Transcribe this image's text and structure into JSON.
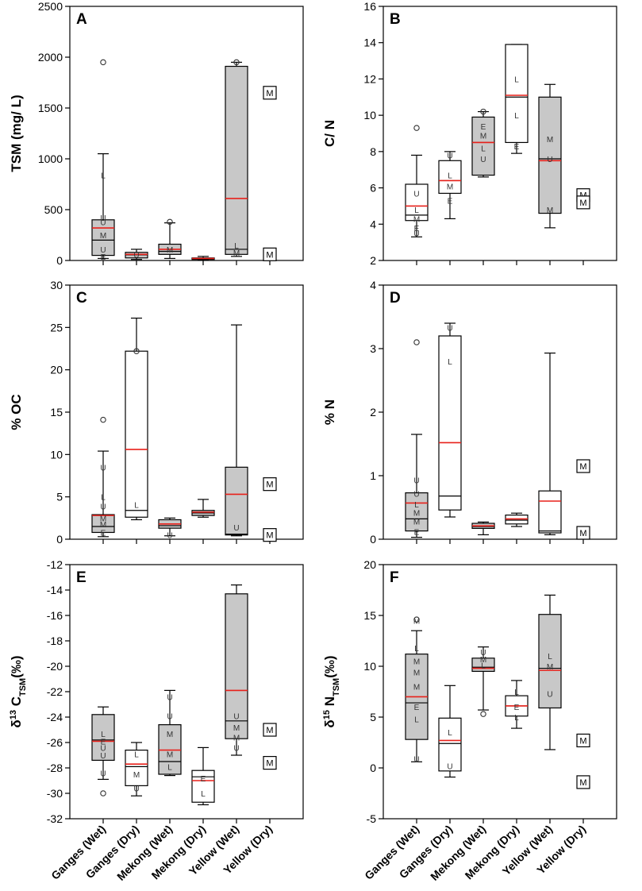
{
  "figure": {
    "categories": [
      "Ganges (Wet)",
      "Ganges (Dry)",
      "Mekong (Wet)",
      "Mekong (Dry)",
      "Yellow (Wet)",
      "Yellow (Dry)"
    ]
  },
  "chart_data": [
    {
      "type": "box",
      "panel": "A",
      "ylabel": "TSM (mg/ L)",
      "ylim": [
        0,
        2500
      ],
      "yticks": [
        0,
        500,
        1000,
        1500,
        2000,
        2500
      ],
      "boxes": [
        {
          "cat": 0,
          "fill": "gray",
          "whiskerLow": 20,
          "q1": 50,
          "median": 200,
          "mean": 320,
          "q3": 400,
          "whiskerHigh": 1050,
          "outliers": [
            1950
          ],
          "markers": [
            {
              "t": "L",
              "v": 840
            },
            {
              "t": "U",
              "v": 420
            },
            {
              "t": "U",
              "v": 380
            },
            {
              "t": "M",
              "v": 250
            },
            {
              "t": "U",
              "v": 110
            },
            {
              "t": "E",
              "v": 40
            }
          ]
        },
        {
          "cat": 1,
          "fill": "gray",
          "whiskerLow": 10,
          "q1": 25,
          "median": 55,
          "mean": 60,
          "q3": 80,
          "whiskerHigh": 110,
          "outliers": [],
          "markers": [
            {
              "t": "U",
              "v": 60
            }
          ]
        },
        {
          "cat": 2,
          "fill": "gray",
          "whiskerLow": 20,
          "q1": 60,
          "median": 90,
          "mean": 110,
          "q3": 160,
          "whiskerHigh": 370,
          "outliers": [
            380
          ],
          "markers": [
            {
              "t": "M",
              "v": 110
            }
          ]
        },
        {
          "cat": 3,
          "fill": "gray",
          "whiskerLow": 5,
          "q1": 10,
          "median": 15,
          "mean": 20,
          "q3": 25,
          "whiskerHigh": 40,
          "outliers": [],
          "markers": []
        },
        {
          "cat": 4,
          "fill": "gray",
          "whiskerLow": 40,
          "q1": 60,
          "median": 110,
          "mean": 610,
          "q3": 1910,
          "whiskerHigh": 1950,
          "outliers": [
            1950
          ],
          "markers": [
            {
              "t": "L",
              "v": 150
            },
            {
              "t": "M",
              "v": 80
            }
          ]
        }
      ],
      "singles": [
        {
          "cat": 5,
          "t": "M",
          "v": 1650
        },
        {
          "cat": 5,
          "t": "M",
          "v": 60
        }
      ]
    },
    {
      "type": "box",
      "panel": "B",
      "ylabel": "C/ N",
      "ylim": [
        2,
        16
      ],
      "yticks": [
        2,
        4,
        6,
        8,
        10,
        12,
        14,
        16
      ],
      "boxes": [
        {
          "cat": 0,
          "fill": "white",
          "whiskerLow": 3.3,
          "q1": 4.2,
          "median": 4.5,
          "mean": 5.0,
          "q3": 6.2,
          "whiskerHigh": 7.8,
          "outliers": [
            9.3
          ],
          "markers": [
            {
              "t": "U",
              "v": 5.7
            },
            {
              "t": "L",
              "v": 4.8
            },
            {
              "t": "M",
              "v": 4.3
            },
            {
              "t": "E",
              "v": 3.8
            },
            {
              "t": "U",
              "v": 3.5
            }
          ]
        },
        {
          "cat": 1,
          "fill": "white",
          "whiskerLow": 4.3,
          "q1": 5.7,
          "median": 6.4,
          "mean": 6.4,
          "q3": 7.5,
          "whiskerHigh": 8.0,
          "outliers": [],
          "markers": [
            {
              "t": "U",
              "v": 7.8
            },
            {
              "t": "L",
              "v": 6.7
            },
            {
              "t": "M",
              "v": 6.1
            },
            {
              "t": "E",
              "v": 5.3
            }
          ]
        },
        {
          "cat": 2,
          "fill": "gray",
          "whiskerLow": 6.6,
          "q1": 6.7,
          "median": 8.5,
          "mean": 8.5,
          "q3": 9.9,
          "whiskerHigh": 10.2,
          "outliers": [
            10.2
          ],
          "markers": [
            {
              "t": "E",
              "v": 9.4
            },
            {
              "t": "M",
              "v": 8.9
            },
            {
              "t": "L",
              "v": 8.2
            },
            {
              "t": "U",
              "v": 7.6
            }
          ]
        },
        {
          "cat": 3,
          "fill": "white",
          "whiskerLow": 7.9,
          "q1": 8.5,
          "median": 11.0,
          "mean": 11.1,
          "q3": 13.9,
          "whiskerHigh": 13.9,
          "outliers": [],
          "markers": [
            {
              "t": "L",
              "v": 12.0
            },
            {
              "t": "L",
              "v": 10.0
            },
            {
              "t": "E",
              "v": 8.3
            }
          ]
        },
        {
          "cat": 4,
          "fill": "gray",
          "whiskerLow": 3.8,
          "q1": 4.6,
          "median": 7.6,
          "mean": 7.5,
          "q3": 11.0,
          "whiskerHigh": 11.7,
          "outliers": [],
          "markers": [
            {
              "t": "M",
              "v": 8.7
            },
            {
              "t": "U",
              "v": 7.6
            },
            {
              "t": "M",
              "v": 4.8
            }
          ]
        }
      ],
      "singles": [
        {
          "cat": 5,
          "t": "M",
          "v": 5.6
        },
        {
          "cat": 5,
          "t": "M",
          "v": 5.2
        }
      ]
    },
    {
      "type": "box",
      "panel": "C",
      "ylabel": "% OC",
      "ylim": [
        0,
        30
      ],
      "yticks": [
        0,
        5,
        10,
        15,
        20,
        25,
        30
      ],
      "boxes": [
        {
          "cat": 0,
          "fill": "gray",
          "whiskerLow": 0.3,
          "q1": 0.8,
          "median": 1.5,
          "mean": 2.8,
          "q3": 2.9,
          "whiskerHigh": 10.4,
          "outliers": [
            14.1
          ],
          "markers": [
            {
              "t": "U",
              "v": 8.5
            },
            {
              "t": "L",
              "v": 5.0
            },
            {
              "t": "U",
              "v": 3.9
            },
            {
              "t": "M",
              "v": 2.5
            },
            {
              "t": "M",
              "v": 1.8
            },
            {
              "t": "E",
              "v": 0.8
            }
          ]
        },
        {
          "cat": 1,
          "fill": "white",
          "whiskerLow": 2.3,
          "q1": 2.6,
          "median": 3.4,
          "mean": 10.6,
          "q3": 22.2,
          "whiskerHigh": 26.1,
          "outliers": [
            22.2
          ],
          "markers": [
            {
              "t": "L",
              "v": 4.1
            }
          ]
        },
        {
          "cat": 2,
          "fill": "gray",
          "whiskerLow": 0.4,
          "q1": 1.3,
          "median": 1.6,
          "mean": 1.8,
          "q3": 2.3,
          "whiskerHigh": 2.5,
          "outliers": [],
          "markers": [
            {
              "t": "U",
              "v": 0.5
            }
          ]
        },
        {
          "cat": 3,
          "fill": "gray",
          "whiskerLow": 2.6,
          "q1": 2.8,
          "median": 3.1,
          "mean": 3.2,
          "q3": 3.4,
          "whiskerHigh": 4.7,
          "outliers": [],
          "markers": []
        },
        {
          "cat": 4,
          "fill": "gray",
          "whiskerLow": 0.4,
          "q1": 0.5,
          "median": 0.6,
          "mean": 5.3,
          "q3": 8.5,
          "whiskerHigh": 25.3,
          "outliers": [],
          "markers": [
            {
              "t": "U",
              "v": 1.4
            }
          ]
        }
      ],
      "singles": [
        {
          "cat": 5,
          "t": "M",
          "v": 6.5
        },
        {
          "cat": 5,
          "t": "M",
          "v": 0.5
        }
      ]
    },
    {
      "type": "box",
      "panel": "D",
      "ylabel": "% N",
      "ylim": [
        0,
        4
      ],
      "yticks": [
        0,
        1,
        2,
        3,
        4
      ],
      "boxes": [
        {
          "cat": 0,
          "fill": "gray",
          "whiskerLow": 0.03,
          "q1": 0.13,
          "median": 0.32,
          "mean": 0.57,
          "q3": 0.73,
          "whiskerHigh": 1.65,
          "outliers": [
            3.1
          ],
          "markers": [
            {
              "t": "U",
              "v": 0.93
            },
            {
              "t": "U",
              "v": 0.72
            },
            {
              "t": "L",
              "v": 0.55
            },
            {
              "t": "M",
              "v": 0.42
            },
            {
              "t": "M",
              "v": 0.28
            },
            {
              "t": "E",
              "v": 0.12
            }
          ]
        },
        {
          "cat": 1,
          "fill": "white",
          "whiskerLow": 0.35,
          "q1": 0.46,
          "median": 0.68,
          "mean": 1.52,
          "q3": 3.2,
          "whiskerHigh": 3.4,
          "outliers": [],
          "markers": [
            {
              "t": "U",
              "v": 3.33
            },
            {
              "t": "L",
              "v": 2.8
            }
          ]
        },
        {
          "cat": 2,
          "fill": "gray",
          "whiskerLow": 0.07,
          "q1": 0.17,
          "median": 0.2,
          "mean": 0.21,
          "q3": 0.25,
          "whiskerHigh": 0.27,
          "outliers": [],
          "markers": []
        },
        {
          "cat": 3,
          "fill": "white",
          "whiskerLow": 0.2,
          "q1": 0.24,
          "median": 0.3,
          "mean": 0.32,
          "q3": 0.38,
          "whiskerHigh": 0.41,
          "outliers": [],
          "markers": []
        },
        {
          "cat": 4,
          "fill": "white",
          "whiskerLow": 0.07,
          "q1": 0.1,
          "median": 0.13,
          "mean": 0.6,
          "q3": 0.76,
          "whiskerHigh": 2.93,
          "outliers": [],
          "markers": []
        }
      ],
      "singles": [
        {
          "cat": 5,
          "t": "M",
          "v": 1.15
        },
        {
          "cat": 5,
          "t": "M",
          "v": 0.1
        }
      ]
    },
    {
      "type": "box",
      "panel": "E",
      "ylabel_parts": [
        "δ",
        "13",
        " C",
        "TSM",
        "(‰)"
      ],
      "ylim": [
        -32,
        -12
      ],
      "yticks": [
        -32,
        -30,
        -28,
        -26,
        -24,
        -22,
        -20,
        -18,
        -16,
        -14,
        -12
      ],
      "boxes": [
        {
          "cat": 0,
          "fill": "gray",
          "whiskerLow": -28.9,
          "q1": -27.4,
          "median": -25.8,
          "mean": -25.9,
          "q3": -23.8,
          "whiskerHigh": -23.2,
          "outliers": [
            -30.0
          ],
          "markers": [
            {
              "t": "L",
              "v": -25.3
            },
            {
              "t": "E",
              "v": -25.9
            },
            {
              "t": "U",
              "v": -26.4
            },
            {
              "t": "U",
              "v": -27.0
            },
            {
              "t": "U",
              "v": -28.4
            }
          ]
        },
        {
          "cat": 1,
          "fill": "white",
          "whiskerLow": -30.2,
          "q1": -29.4,
          "median": -27.9,
          "mean": -27.7,
          "q3": -26.6,
          "whiskerHigh": -26.0,
          "outliers": [],
          "markers": [
            {
              "t": "L",
              "v": -26.9
            },
            {
              "t": "M",
              "v": -28.5
            },
            {
              "t": "U",
              "v": -29.6
            }
          ]
        },
        {
          "cat": 2,
          "fill": "gray",
          "whiskerLow": -28.6,
          "q1": -28.5,
          "median": -27.5,
          "mean": -26.6,
          "q3": -24.6,
          "whiskerHigh": -21.9,
          "outliers": [],
          "markers": [
            {
              "t": "U",
              "v": -22.4
            },
            {
              "t": "U",
              "v": -23.9
            },
            {
              "t": "M",
              "v": -25.3
            },
            {
              "t": "M",
              "v": -26.9
            },
            {
              "t": "L",
              "v": -27.9
            }
          ]
        },
        {
          "cat": 3,
          "fill": "white",
          "whiskerLow": -30.9,
          "q1": -30.7,
          "median": -28.7,
          "mean": -29.0,
          "q3": -28.2,
          "whiskerHigh": -26.4,
          "outliers": [],
          "markers": [
            {
              "t": "E",
              "v": -28.8
            },
            {
              "t": "L",
              "v": -30.0
            }
          ]
        },
        {
          "cat": 4,
          "fill": "gray",
          "whiskerLow": -27.0,
          "q1": -25.7,
          "median": -24.3,
          "mean": -21.9,
          "q3": -14.3,
          "whiskerHigh": -13.6,
          "outliers": [],
          "markers": [
            {
              "t": "U",
              "v": -23.9
            },
            {
              "t": "M",
              "v": -24.8
            },
            {
              "t": "M",
              "v": -25.6
            },
            {
              "t": "U",
              "v": -26.4
            }
          ]
        }
      ],
      "singles": [
        {
          "cat": 5,
          "t": "M",
          "v": -25.0
        },
        {
          "cat": 5,
          "t": "M",
          "v": -27.6
        }
      ]
    },
    {
      "type": "box",
      "panel": "F",
      "ylabel_parts": [
        "δ",
        "15",
        " N",
        "TSM",
        "(‰)"
      ],
      "ylim": [
        -5,
        20
      ],
      "yticks": [
        -5,
        0,
        5,
        10,
        15,
        20
      ],
      "boxes": [
        {
          "cat": 0,
          "fill": "gray",
          "whiskerLow": 0.6,
          "q1": 2.8,
          "median": 6.4,
          "mean": 7.0,
          "q3": 11.2,
          "whiskerHigh": 13.5,
          "outliers": [
            14.6
          ],
          "markers": [
            {
              "t": "M",
              "v": 14.5
            },
            {
              "t": "L",
              "v": 11.8
            },
            {
              "t": "M",
              "v": 10.5
            },
            {
              "t": "M",
              "v": 9.4
            },
            {
              "t": "M",
              "v": 8.0
            },
            {
              "t": "E",
              "v": 6.0
            },
            {
              "t": "L",
              "v": 4.8
            },
            {
              "t": "U",
              "v": 0.9
            }
          ]
        },
        {
          "cat": 1,
          "fill": "white",
          "whiskerLow": -0.9,
          "q1": -0.3,
          "median": 2.4,
          "mean": 2.7,
          "q3": 4.9,
          "whiskerHigh": 8.1,
          "outliers": [],
          "markers": [
            {
              "t": "L",
              "v": 3.5
            },
            {
              "t": "U",
              "v": 0.2
            }
          ]
        },
        {
          "cat": 2,
          "fill": "gray",
          "whiskerLow": 5.7,
          "q1": 9.5,
          "median": 9.9,
          "mean": 9.8,
          "q3": 10.8,
          "whiskerHigh": 11.9,
          "outliers": [
            5.3
          ],
          "markers": [
            {
              "t": "U",
              "v": 11.4
            },
            {
              "t": "M",
              "v": 10.7
            },
            {
              "t": "L",
              "v": 10.1
            }
          ]
        },
        {
          "cat": 3,
          "fill": "white",
          "whiskerLow": 3.9,
          "q1": 5.1,
          "median": 6.1,
          "mean": 6.1,
          "q3": 7.1,
          "whiskerHigh": 8.6,
          "outliers": [],
          "markers": [
            {
              "t": "L",
              "v": 7.5
            },
            {
              "t": "E",
              "v": 6.0
            },
            {
              "t": "L",
              "v": 5.0
            }
          ]
        },
        {
          "cat": 4,
          "fill": "gray",
          "whiskerLow": 1.8,
          "q1": 5.9,
          "median": 9.8,
          "mean": 9.6,
          "q3": 15.1,
          "whiskerHigh": 17.0,
          "outliers": [],
          "markers": [
            {
              "t": "L",
              "v": 11.0
            },
            {
              "t": "M",
              "v": 10.0
            },
            {
              "t": "U",
              "v": 7.3
            }
          ]
        }
      ],
      "singles": [
        {
          "cat": 5,
          "t": "M",
          "v": 2.7
        },
        {
          "cat": 5,
          "t": "M",
          "v": -1.4
        }
      ]
    }
  ]
}
